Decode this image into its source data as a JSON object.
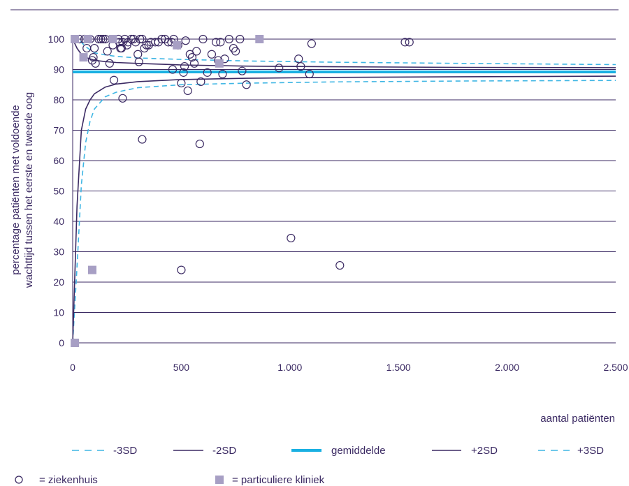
{
  "chart_data": {
    "type": "scatter",
    "title": "",
    "xlabel": "aantal patiënten",
    "ylabel_lines": [
      "percentage patiënten met voldoende",
      "wachttijd tussen het eerste en tweede oog"
    ],
    "xlim": [
      0,
      2500
    ],
    "ylim": [
      0,
      100
    ],
    "x_ticks": [
      0,
      500,
      1000,
      1500,
      2000,
      2500
    ],
    "x_tick_labels": [
      "0",
      "500",
      "1.000",
      "1.500",
      "2.000",
      "2.500"
    ],
    "y_ticks": [
      0,
      10,
      20,
      30,
      40,
      50,
      60,
      70,
      80,
      90,
      100
    ],
    "y_tick_labels": [
      "0",
      "10",
      "20",
      "30",
      "40",
      "50",
      "60",
      "70",
      "80",
      "90",
      "100"
    ],
    "grid": true,
    "mean": 89.2,
    "colors": {
      "axis": "#3b2a63",
      "mean": "#1ab0e2",
      "sd2": "#3b2a63",
      "sd3": "#3fb6e4",
      "ziekenhuis": "#3b2a63",
      "particulier": "#a79fc4"
    },
    "control_limits": [
      {
        "key": "minus3sd",
        "x": [
          0,
          20,
          40,
          60,
          80,
          100,
          150,
          200,
          300,
          500,
          800,
          1200,
          1800,
          2500
        ],
        "y": [
          0,
          25,
          52,
          66,
          73,
          77,
          81,
          82.5,
          84,
          85,
          85.5,
          85.9,
          86.2,
          86.4
        ]
      },
      {
        "key": "minus2sd",
        "x": [
          0,
          20,
          40,
          60,
          80,
          100,
          150,
          200,
          300,
          500,
          800,
          1200,
          1800,
          2500
        ],
        "y": [
          0,
          45,
          70,
          77,
          80,
          82,
          84.2,
          85.2,
          86,
          86.7,
          87.1,
          87.4,
          87.6,
          87.8
        ]
      },
      {
        "key": "plus2sd",
        "x": [
          0,
          20,
          40,
          60,
          80,
          100,
          150,
          200,
          300,
          500,
          800,
          1200,
          1800,
          2500
        ],
        "y": [
          100,
          97,
          95,
          94,
          93.5,
          93,
          92.6,
          92.3,
          92,
          91.5,
          91.1,
          90.9,
          90.7,
          90.6
        ]
      },
      {
        "key": "plus3sd",
        "x": [
          0,
          20,
          40,
          60,
          80,
          100,
          150,
          200,
          300,
          500,
          800,
          1200,
          1800,
          2500
        ],
        "y": [
          100,
          100,
          99,
          97.5,
          96.5,
          95.5,
          94.8,
          94.3,
          93.8,
          93.3,
          92.8,
          92.4,
          92,
          91.6
        ]
      }
    ],
    "series": [
      {
        "name": "ziekenhuis",
        "marker": "circle",
        "points": [
          [
            30,
            100
          ],
          [
            55,
            100
          ],
          [
            65,
            97
          ],
          [
            80,
            100
          ],
          [
            90,
            93
          ],
          [
            95,
            94
          ],
          [
            100,
            97
          ],
          [
            105,
            92
          ],
          [
            120,
            100
          ],
          [
            130,
            100
          ],
          [
            140,
            100
          ],
          [
            150,
            100
          ],
          [
            160,
            96
          ],
          [
            170,
            92
          ],
          [
            185,
            98
          ],
          [
            190,
            86.5
          ],
          [
            210,
            100
          ],
          [
            215,
            99
          ],
          [
            220,
            97
          ],
          [
            225,
            97
          ],
          [
            230,
            99
          ],
          [
            240,
            100
          ],
          [
            250,
            98
          ],
          [
            255,
            99
          ],
          [
            270,
            100
          ],
          [
            280,
            100
          ],
          [
            290,
            99
          ],
          [
            300,
            95
          ],
          [
            305,
            92.5
          ],
          [
            310,
            100
          ],
          [
            320,
            100
          ],
          [
            330,
            97
          ],
          [
            340,
            98
          ],
          [
            350,
            98
          ],
          [
            360,
            99
          ],
          [
            380,
            99
          ],
          [
            395,
            99
          ],
          [
            410,
            100
          ],
          [
            425,
            100
          ],
          [
            440,
            99
          ],
          [
            455,
            99
          ],
          [
            460,
            90
          ],
          [
            465,
            100
          ],
          [
            485,
            98
          ],
          [
            500,
            85.5
          ],
          [
            510,
            89
          ],
          [
            515,
            91
          ],
          [
            520,
            99.5
          ],
          [
            530,
            83
          ],
          [
            540,
            95
          ],
          [
            550,
            94
          ],
          [
            560,
            92
          ],
          [
            570,
            96
          ],
          [
            590,
            86
          ],
          [
            600,
            100
          ],
          [
            620,
            89
          ],
          [
            640,
            95
          ],
          [
            660,
            99
          ],
          [
            670,
            93
          ],
          [
            680,
            99
          ],
          [
            690,
            88.5
          ],
          [
            700,
            93.5
          ],
          [
            720,
            100
          ],
          [
            740,
            97
          ],
          [
            750,
            96
          ],
          [
            770,
            100
          ],
          [
            780,
            89.5
          ],
          [
            800,
            85
          ],
          [
            950,
            90.5
          ],
          [
            1040,
            93.5
          ],
          [
            1050,
            91
          ],
          [
            1090,
            88.5
          ],
          [
            1100,
            98.5
          ],
          [
            1530,
            99
          ],
          [
            230,
            80.5
          ],
          [
            320,
            67
          ],
          [
            585,
            65.5
          ],
          [
            1005,
            34.5
          ],
          [
            500,
            24
          ],
          [
            1230,
            25.5
          ],
          [
            1550,
            99
          ]
        ]
      },
      {
        "name": "particuliere kliniek",
        "marker": "square",
        "points": [
          [
            10,
            100
          ],
          [
            50,
            94
          ],
          [
            70,
            100
          ],
          [
            185,
            100
          ],
          [
            480,
            98
          ],
          [
            675,
            92
          ],
          [
            860,
            100
          ],
          [
            90,
            24
          ],
          [
            10,
            0
          ]
        ]
      }
    ]
  },
  "legend": {
    "lines": [
      {
        "label": "-3SD",
        "key": "minus3sd"
      },
      {
        "label": "-2SD",
        "key": "minus2sd"
      },
      {
        "label": "gemiddelde",
        "key": "mean"
      },
      {
        "label": "+2SD",
        "key": "plus2sd"
      },
      {
        "label": "+3SD",
        "key": "plus3sd"
      }
    ],
    "markers": [
      {
        "label": "= ziekenhuis",
        "key": "ziekenhuis"
      },
      {
        "label": "= particuliere kliniek",
        "key": "particulier"
      }
    ]
  }
}
